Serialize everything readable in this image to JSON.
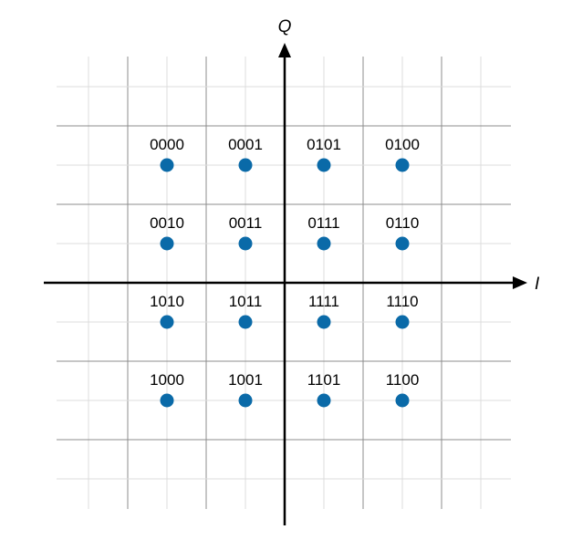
{
  "chart_data": {
    "type": "scatter",
    "title": "",
    "xlabel": "I",
    "ylabel": "Q",
    "xlim": [
      -3,
      3
    ],
    "ylim": [
      -3,
      3
    ],
    "grid": true,
    "marker_color": "#0a6aa8",
    "points": [
      {
        "x": -1.5,
        "y": 1.5,
        "label": "0000"
      },
      {
        "x": -0.5,
        "y": 1.5,
        "label": "0001"
      },
      {
        "x": 0.5,
        "y": 1.5,
        "label": "0101"
      },
      {
        "x": 1.5,
        "y": 1.5,
        "label": "0100"
      },
      {
        "x": -1.5,
        "y": 0.5,
        "label": "0010"
      },
      {
        "x": -0.5,
        "y": 0.5,
        "label": "0011"
      },
      {
        "x": 0.5,
        "y": 0.5,
        "label": "0111"
      },
      {
        "x": 1.5,
        "y": 0.5,
        "label": "0110"
      },
      {
        "x": -1.5,
        "y": -0.5,
        "label": "1010"
      },
      {
        "x": -0.5,
        "y": -0.5,
        "label": "1011"
      },
      {
        "x": 0.5,
        "y": -0.5,
        "label": "1111"
      },
      {
        "x": 1.5,
        "y": -0.5,
        "label": "1110"
      },
      {
        "x": -1.5,
        "y": -1.5,
        "label": "1000"
      },
      {
        "x": -0.5,
        "y": -1.5,
        "label": "1001"
      },
      {
        "x": 0.5,
        "y": -1.5,
        "label": "1101"
      },
      {
        "x": 1.5,
        "y": -1.5,
        "label": "1100"
      }
    ]
  }
}
